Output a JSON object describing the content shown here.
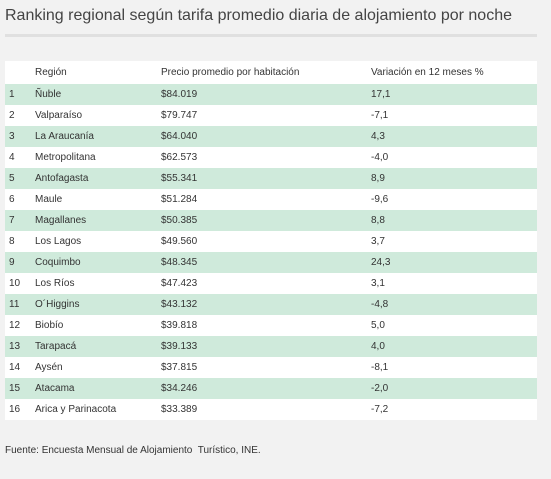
{
  "title": "Ranking regional según tarifa promedio diaria de alojamiento por noche",
  "source": "Fuente: Encuesta Mensual de Alojamiento  Turístico, INE.",
  "colors": {
    "band": "#cfeadb",
    "background": "#f2f2f2",
    "table_background": "#ffffff"
  },
  "chart_data": {
    "type": "table",
    "title": "Ranking regional según tarifa promedio diaria de alojamiento por noche",
    "columns": [
      "",
      "Región",
      "Precio promedio por habitación",
      "Variación en 12 meses %"
    ],
    "rows": [
      [
        "1",
        "Ñuble",
        "$84.019",
        "17,1"
      ],
      [
        "2",
        "Valparaíso",
        "$79.747",
        "-7,1"
      ],
      [
        "3",
        "La Araucanía",
        "$64.040",
        "4,3"
      ],
      [
        "4",
        "Metropolitana",
        "$62.573",
        "-4,0"
      ],
      [
        "5",
        "Antofagasta",
        "$55.341",
        "8,9"
      ],
      [
        "6",
        "Maule",
        "$51.284",
        "-9,6"
      ],
      [
        "7",
        "Magallanes",
        "$50.385",
        "8,8"
      ],
      [
        "8",
        "Los Lagos",
        "$49.560",
        "3,7"
      ],
      [
        "9",
        "Coquimbo",
        "$48.345",
        "24,3"
      ],
      [
        "10",
        "Los Ríos",
        "$47.423",
        "3,1"
      ],
      [
        "11",
        "O´Higgins",
        "$43.132",
        "-4,8"
      ],
      [
        "12",
        "Biobío",
        "$39.818",
        "5,0"
      ],
      [
        "13",
        "Tarapacá",
        "$39.133",
        "4,0"
      ],
      [
        "14",
        "Aysén",
        "$37.815",
        "-8,1"
      ],
      [
        "15",
        "Atacama",
        "$34.246",
        "-2,0"
      ],
      [
        "16",
        "Arica y Parinacota",
        "$33.389",
        "-7,2"
      ]
    ]
  }
}
